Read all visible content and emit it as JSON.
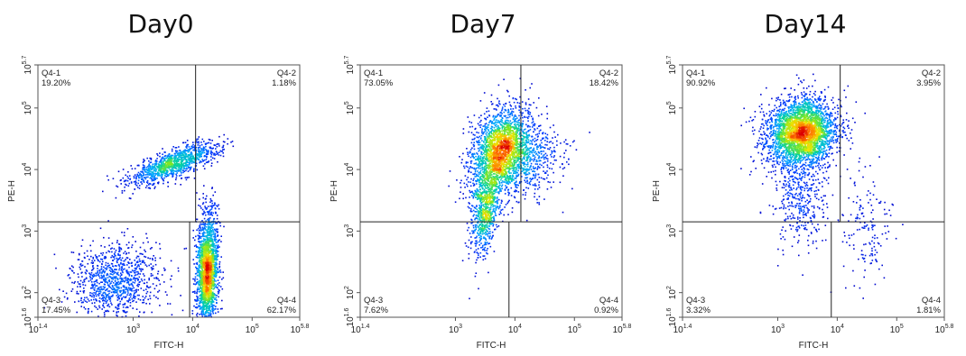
{
  "chart_data": [
    {
      "type": "scatter",
      "title": "Day0",
      "xlabel": "FITC-H",
      "ylabel": "PE-H",
      "x_scale": "log",
      "y_scale": "log",
      "xlim_exp": [
        1.4,
        5.8
      ],
      "ylim_exp": [
        1.6,
        5.7
      ],
      "x_ticks": [
        {
          "base": "10",
          "exp": "1.4"
        },
        {
          "base": "10",
          "exp": "3"
        },
        {
          "base": "10",
          "exp": "4"
        },
        {
          "base": "10",
          "exp": "5"
        },
        {
          "base": "10",
          "exp": "5.8"
        }
      ],
      "y_ticks": [
        {
          "base": "10",
          "exp": "1.6"
        },
        {
          "base": "10",
          "exp": "2"
        },
        {
          "base": "10",
          "exp": "3"
        },
        {
          "base": "10",
          "exp": "4"
        },
        {
          "base": "10",
          "exp": "5"
        },
        {
          "base": "10",
          "exp": "5.7"
        }
      ],
      "gate": {
        "y_exp": 3.15,
        "x_top_exp": 4.05,
        "x_bottom_exp": 3.95
      },
      "quadrants": [
        {
          "id": "Q4-1",
          "label": "Q4-1",
          "percent": "19.20%",
          "position": "top-left"
        },
        {
          "id": "Q4-2",
          "label": "Q4-2",
          "percent": "1.18%",
          "position": "top-right"
        },
        {
          "id": "Q4-3",
          "label": "Q4-3",
          "percent": "17.45%",
          "position": "bottom-left"
        },
        {
          "id": "Q4-4",
          "label": "Q4-4",
          "percent": "62.17%",
          "position": "bottom-right"
        }
      ],
      "populations": [
        {
          "cx": 3.7,
          "cy": 4.1,
          "sx": 0.38,
          "sy": 0.17,
          "rho": 0.75,
          "n": 1100
        },
        {
          "cx": 2.7,
          "cy": 2.2,
          "sx": 0.38,
          "sy": 0.3,
          "rho": 0.1,
          "n": 1000
        },
        {
          "cx": 4.25,
          "cy": 2.35,
          "sx": 0.09,
          "sy": 0.45,
          "rho": 0.05,
          "n": 2000
        }
      ]
    },
    {
      "type": "scatter",
      "title": "Day7",
      "xlabel": "FITC-H",
      "ylabel": "PE-H",
      "x_scale": "log",
      "y_scale": "log",
      "xlim_exp": [
        1.4,
        5.8
      ],
      "ylim_exp": [
        1.6,
        5.7
      ],
      "x_ticks": [
        {
          "base": "10",
          "exp": "1.4"
        },
        {
          "base": "10",
          "exp": "3"
        },
        {
          "base": "10",
          "exp": "4"
        },
        {
          "base": "10",
          "exp": "5"
        },
        {
          "base": "10",
          "exp": "5.8"
        }
      ],
      "y_ticks": [
        {
          "base": "10",
          "exp": "1.6"
        },
        {
          "base": "10",
          "exp": "2"
        },
        {
          "base": "10",
          "exp": "3"
        },
        {
          "base": "10",
          "exp": "4"
        },
        {
          "base": "10",
          "exp": "5"
        },
        {
          "base": "10",
          "exp": "5.7"
        }
      ],
      "gate": {
        "y_exp": 3.15,
        "x_top_exp": 4.1,
        "x_bottom_exp": 3.9
      },
      "quadrants": [
        {
          "id": "Q4-1",
          "label": "Q4-1",
          "percent": "73.05%",
          "position": "top-left"
        },
        {
          "id": "Q4-2",
          "label": "Q4-2",
          "percent": "18.42%",
          "position": "top-right"
        },
        {
          "id": "Q4-3",
          "label": "Q4-3",
          "percent": "7.62%",
          "position": "bottom-left"
        },
        {
          "id": "Q4-4",
          "label": "Q4-4",
          "percent": "0.92%",
          "position": "bottom-right"
        }
      ],
      "populations": [
        {
          "cx": 3.75,
          "cy": 4.3,
          "sx": 0.25,
          "sy": 0.35,
          "rho": 0.3,
          "n": 2200
        },
        {
          "cx": 3.5,
          "cy": 3.3,
          "sx": 0.12,
          "sy": 0.35,
          "rho": 0.4,
          "n": 700
        },
        {
          "cx": 4.2,
          "cy": 4.15,
          "sx": 0.3,
          "sy": 0.3,
          "rho": 0.1,
          "n": 500
        }
      ]
    },
    {
      "type": "scatter",
      "title": "Day14",
      "xlabel": "FITC-H",
      "ylabel": "PE-H",
      "x_scale": "log",
      "y_scale": "log",
      "xlim_exp": [
        1.4,
        5.8
      ],
      "ylim_exp": [
        1.6,
        5.7
      ],
      "x_ticks": [
        {
          "base": "10",
          "exp": "1.4"
        },
        {
          "base": "10",
          "exp": "3"
        },
        {
          "base": "10",
          "exp": "4"
        },
        {
          "base": "10",
          "exp": "5"
        },
        {
          "base": "10",
          "exp": "5.8"
        }
      ],
      "y_ticks": [
        {
          "base": "10",
          "exp": "1.6"
        },
        {
          "base": "10",
          "exp": "2"
        },
        {
          "base": "10",
          "exp": "3"
        },
        {
          "base": "10",
          "exp": "4"
        },
        {
          "base": "10",
          "exp": "5"
        },
        {
          "base": "10",
          "exp": "5.7"
        }
      ],
      "gate": {
        "y_exp": 3.15,
        "x_top_exp": 4.05,
        "x_bottom_exp": 3.9
      },
      "quadrants": [
        {
          "id": "Q4-1",
          "label": "Q4-1",
          "percent": "90.92%",
          "position": "top-left"
        },
        {
          "id": "Q4-2",
          "label": "Q4-2",
          "percent": "3.95%",
          "position": "top-right"
        },
        {
          "id": "Q4-3",
          "label": "Q4-3",
          "percent": "3.32%",
          "position": "bottom-left"
        },
        {
          "id": "Q4-4",
          "label": "Q4-4",
          "percent": "1.81%",
          "position": "bottom-right"
        }
      ],
      "populations": [
        {
          "cx": 3.4,
          "cy": 4.6,
          "sx": 0.3,
          "sy": 0.28,
          "rho": 0.05,
          "n": 3000
        },
        {
          "cx": 3.35,
          "cy": 3.6,
          "sx": 0.22,
          "sy": 0.4,
          "rho": 0.0,
          "n": 400
        },
        {
          "cx": 4.5,
          "cy": 3.0,
          "sx": 0.2,
          "sy": 0.45,
          "rho": 0.0,
          "n": 150
        }
      ]
    }
  ]
}
